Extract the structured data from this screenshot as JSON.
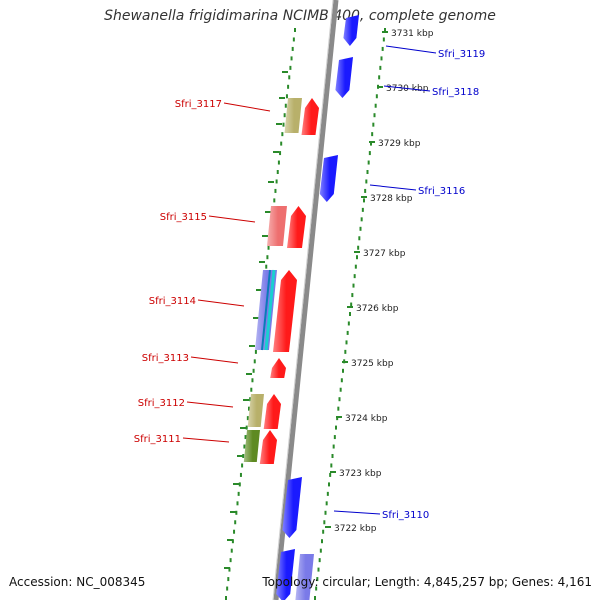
{
  "title": "Shewanella frigidimarina NCIMB 400, complete genome",
  "footer": {
    "accession": "Accession: NC_008345",
    "stats": "Topology: circular; Length: 4,845,257 bp; Genes: 4,161"
  },
  "colors": {
    "backbone": "#8a8a8a",
    "dots": "#2a8a2a",
    "forward_label": "#cc0000",
    "reverse_label": "#0000cc",
    "forward_gene": "#ff1a1a",
    "reverse_gene": "#1a1aff"
  },
  "ticks": [
    {
      "label": "3731 kbp"
    },
    {
      "label": "3730 kbp"
    },
    {
      "label": "3729 kbp"
    },
    {
      "label": "3728 kbp"
    },
    {
      "label": "3727 kbp"
    },
    {
      "label": "3726 kbp"
    },
    {
      "label": "3725 kbp"
    },
    {
      "label": "3724 kbp"
    },
    {
      "label": "3723 kbp"
    },
    {
      "label": "3722 kbp"
    }
  ],
  "forward_genes": [
    {
      "label": "Sfri_3117"
    },
    {
      "label": "Sfri_3115"
    },
    {
      "label": "Sfri_3114"
    },
    {
      "label": "Sfri_3113"
    },
    {
      "label": "Sfri_3112"
    },
    {
      "label": "Sfri_3111"
    }
  ],
  "reverse_genes": [
    {
      "label": "Sfri_3119"
    },
    {
      "label": "Sfri_3118"
    },
    {
      "label": "Sfri_3116"
    },
    {
      "label": "Sfri_3110"
    }
  ]
}
